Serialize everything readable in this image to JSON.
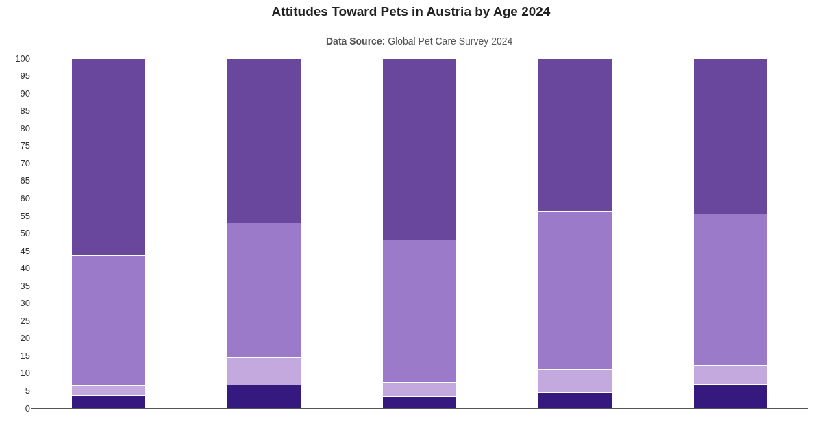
{
  "chart_data": {
    "type": "bar",
    "title": "Attitudes Toward Pets in Austria by Age 2024",
    "subtitle": "Data Source: Global Pet Care Survey 2024",
    "categories": [
      null,
      null,
      null,
      null,
      null
    ],
    "stacked": true,
    "series": [
      {
        "color": "#36197f",
        "values": [
          3.6,
          6.6,
          3.2,
          4.5,
          6.8
        ]
      },
      {
        "color": "#c3a9de",
        "values": [
          2.8,
          7.8,
          4.2,
          6.5,
          5.5
        ]
      },
      {
        "color": "#9b7bc9",
        "values": [
          37.1,
          38.5,
          40.6,
          45.3,
          43.1
        ]
      },
      {
        "color": "#68479c",
        "values": [
          56.5,
          47.1,
          52.0,
          43.7,
          44.6
        ]
      }
    ],
    "ylim": [
      0,
      100
    ],
    "yticks": [
      0,
      5,
      10,
      15,
      20,
      25,
      30,
      35,
      40,
      45,
      50,
      55,
      60,
      65,
      70,
      75,
      80,
      85,
      90,
      95,
      100
    ],
    "grid": false
  }
}
